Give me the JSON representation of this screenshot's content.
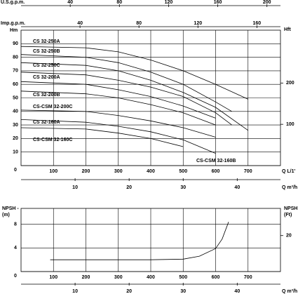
{
  "chart_data": [
    {
      "type": "line",
      "top_label": "U.S.g.p.m.",
      "x3lim": [
        0,
        211
      ],
      "x3ticks": [
        40,
        80,
        120,
        160,
        200
      ],
      "top2_label": "Imp.g.p.m.",
      "x4lim": [
        0,
        176
      ],
      "x4ticks": [
        40,
        80,
        120,
        160
      ],
      "x_label": "Q L/1'",
      "xlim": [
        0,
        800
      ],
      "xticks": [
        100,
        200,
        300,
        400,
        500,
        600,
        700
      ],
      "x2_label": "Q m³/h",
      "x2lim": [
        0,
        48
      ],
      "x2ticks": [
        10,
        20,
        30,
        40
      ],
      "y_label": "Hm",
      "ylim": [
        0,
        100
      ],
      "yticks": [
        0,
        10,
        20,
        30,
        40,
        50,
        60,
        70,
        80,
        90
      ],
      "y2_label": "Hft",
      "y2lim": [
        0,
        328
      ],
      "y2ticks": [
        100,
        200
      ],
      "grid": true,
      "color": "#000000",
      "series": [
        {
          "name": "CS 32-250A",
          "x": [
            0,
            200,
            300,
            400,
            500,
            600,
            700
          ],
          "values": [
            88,
            87,
            84,
            78,
            70,
            60,
            49
          ]
        },
        {
          "name": "CS 32-250B",
          "x": [
            0,
            200,
            300,
            400,
            500,
            600,
            650
          ],
          "values": [
            82,
            80,
            76,
            69,
            60,
            47,
            40
          ]
        },
        {
          "name": "CS 32-250C",
          "x": [
            0,
            200,
            300,
            400,
            500,
            600,
            700
          ],
          "values": [
            76,
            74,
            70,
            63,
            54,
            43,
            26
          ]
        },
        {
          "name": "CS 32-200A",
          "x": [
            0,
            200,
            300,
            400,
            500,
            600,
            650
          ],
          "values": [
            69,
            67,
            63,
            58,
            51,
            39,
            30
          ]
        },
        {
          "name": "CS 32-200B",
          "x": [
            0,
            200,
            300,
            400,
            500,
            600
          ],
          "values": [
            62,
            60,
            56,
            51,
            44,
            35
          ]
        },
        {
          "name": "CS-CSM 32-200C",
          "x": [
            0,
            200,
            300,
            400,
            500,
            600
          ],
          "values": [
            55,
            53,
            50,
            45,
            39,
            30
          ]
        },
        {
          "name": "CS 32-160A",
          "x": [
            0,
            200,
            300,
            400,
            500,
            600
          ],
          "values": [
            41,
            40,
            37,
            33,
            28,
            21
          ]
        },
        {
          "name": "CS-CSM 32-160C",
          "x": [
            0,
            200,
            300,
            400,
            500
          ],
          "values": [
            28,
            27,
            24,
            20,
            14
          ]
        },
        {
          "name": "CS-CSM 32-160B",
          "x": [
            0,
            200,
            300,
            400,
            500,
            600
          ],
          "values": [
            34,
            32,
            29,
            25,
            19,
            9
          ]
        }
      ]
    },
    {
      "type": "line",
      "y_label": [
        "NPSH -",
        "(m)"
      ],
      "ylim": [
        0,
        10.7
      ],
      "yticks": [
        0,
        4,
        8
      ],
      "y2_label": [
        "NPSH",
        "(Ft)"
      ],
      "y2lim": [
        0,
        35.1
      ],
      "y2ticks": [
        20
      ],
      "xlim": [
        0,
        800
      ],
      "xticks": [
        100,
        200,
        300,
        400,
        500,
        600,
        700
      ],
      "x2_label": "Q m³/h",
      "x2lim": [
        0,
        48
      ],
      "x2ticks": [
        10,
        20,
        30,
        40
      ],
      "grid": true,
      "color": "#000000",
      "x": [
        90,
        200,
        300,
        400,
        500,
        550,
        600,
        620,
        640
      ],
      "values": [
        2,
        2,
        2,
        2,
        2.1,
        2.6,
        3.9,
        5.5,
        8.4
      ]
    }
  ]
}
